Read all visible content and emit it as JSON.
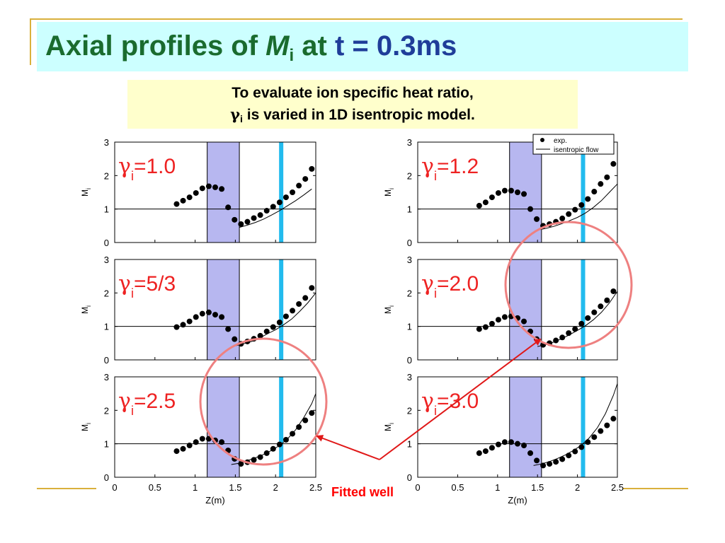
{
  "header": {
    "title_prefix": "Axial profiles of ",
    "title_var": "M",
    "title_sub": "i",
    "title_mid": " at ",
    "title_time": "t = 0.3ms"
  },
  "note": {
    "line1": "To evaluate ion specific heat ratio,",
    "gamma_symbol": "γ",
    "gamma_sub": "i",
    "line2_rest": " is varied in 1D isentropic model."
  },
  "annotation": {
    "label": "Fitted well"
  },
  "colors": {
    "title": "#1a6b2e",
    "title_time": "#1f3d99",
    "title_bg": "#ccffff",
    "note_bg": "#ffffcc",
    "shade": "#b7b7f0",
    "cyan_line": "#22bbee",
    "gamma_label": "#ee2222",
    "circle": "#ee8080",
    "arrow": "#e01818",
    "frame": "#d9b03c"
  },
  "chart_data": [
    {
      "type": "scatter",
      "gamma_label": "=1.0",
      "ylabel": "M",
      "ylabel_sub": "i",
      "xlim": [
        0,
        2.5
      ],
      "ylim": [
        0,
        3
      ],
      "yticks": [
        "0",
        "1",
        "2",
        "3"
      ],
      "shaded_region": [
        1.15,
        1.55
      ],
      "vline_x": 2.07,
      "hline_y": 1,
      "legend": null,
      "series": [
        {
          "kind": "points",
          "x": [
            0.77,
            0.85,
            0.93,
            1.01,
            1.09,
            1.17,
            1.25,
            1.33,
            1.41,
            1.49,
            1.57,
            1.65,
            1.73,
            1.81,
            1.89,
            1.97,
            2.05,
            2.13,
            2.21,
            2.29,
            2.37,
            2.45
          ],
          "y": [
            1.15,
            1.25,
            1.35,
            1.48,
            1.62,
            1.68,
            1.65,
            1.6,
            1.05,
            0.68,
            0.55,
            0.62,
            0.73,
            0.82,
            0.95,
            1.07,
            1.2,
            1.35,
            1.5,
            1.7,
            1.9,
            2.2
          ]
        },
        {
          "kind": "line",
          "x": [
            1.55,
            1.65,
            1.75,
            1.85,
            1.95,
            2.05,
            2.15,
            2.25,
            2.35,
            2.45
          ],
          "y": [
            0.45,
            0.52,
            0.6,
            0.7,
            0.82,
            0.95,
            1.1,
            1.25,
            1.42,
            1.6
          ]
        }
      ]
    },
    {
      "type": "scatter",
      "gamma_label": "=1.2",
      "ylabel": "M",
      "ylabel_sub": "i",
      "xlim": [
        0,
        2.5
      ],
      "ylim": [
        0,
        3
      ],
      "yticks": [
        "0",
        "1",
        "2",
        "3"
      ],
      "shaded_region": [
        1.15,
        1.55
      ],
      "vline_x": 2.07,
      "hline_y": 1,
      "legend": {
        "points": "exp.",
        "line": "isentropic flow"
      },
      "series": [
        {
          "kind": "points",
          "x": [
            0.77,
            0.85,
            0.93,
            1.01,
            1.09,
            1.17,
            1.25,
            1.33,
            1.41,
            1.49,
            1.57,
            1.65,
            1.73,
            1.81,
            1.89,
            1.97,
            2.05,
            2.13,
            2.21,
            2.29,
            2.37,
            2.45
          ],
          "y": [
            1.1,
            1.2,
            1.35,
            1.48,
            1.55,
            1.55,
            1.5,
            1.45,
            1.0,
            0.7,
            0.5,
            0.55,
            0.62,
            0.72,
            0.85,
            0.98,
            1.12,
            1.3,
            1.52,
            1.75,
            1.95,
            2.35
          ]
        },
        {
          "kind": "line",
          "x": [
            1.52,
            1.6,
            1.7,
            1.8,
            1.9,
            2.0,
            2.1,
            2.2,
            2.3,
            2.4,
            2.5
          ],
          "y": [
            0.38,
            0.42,
            0.48,
            0.56,
            0.65,
            0.75,
            0.88,
            1.05,
            1.25,
            1.5,
            1.75
          ]
        }
      ]
    },
    {
      "type": "scatter",
      "gamma_label": "=5/3",
      "ylabel": "M",
      "ylabel_sub": "i",
      "xlim": [
        0,
        2.5
      ],
      "ylim": [
        0,
        3
      ],
      "yticks": [
        "0",
        "1",
        "2",
        "3"
      ],
      "shaded_region": [
        1.15,
        1.55
      ],
      "vline_x": 2.07,
      "hline_y": 1,
      "legend": null,
      "series": [
        {
          "kind": "points",
          "x": [
            0.77,
            0.85,
            0.93,
            1.01,
            1.09,
            1.17,
            1.25,
            1.33,
            1.41,
            1.49,
            1.57,
            1.65,
            1.73,
            1.81,
            1.89,
            1.97,
            2.05,
            2.13,
            2.21,
            2.29,
            2.37,
            2.45
          ],
          "y": [
            0.98,
            1.05,
            1.15,
            1.28,
            1.38,
            1.42,
            1.35,
            1.28,
            0.92,
            0.62,
            0.48,
            0.55,
            0.63,
            0.72,
            0.85,
            0.98,
            1.12,
            1.3,
            1.47,
            1.67,
            1.85,
            2.15
          ]
        },
        {
          "kind": "line",
          "x": [
            1.5,
            1.6,
            1.7,
            1.8,
            1.9,
            2.0,
            2.1,
            2.2,
            2.3,
            2.4,
            2.5
          ],
          "y": [
            0.42,
            0.48,
            0.55,
            0.65,
            0.78,
            0.9,
            1.05,
            1.22,
            1.45,
            1.7,
            2.0
          ]
        }
      ]
    },
    {
      "type": "scatter",
      "gamma_label": "=2.0",
      "ylabel": "M",
      "ylabel_sub": "i",
      "xlim": [
        0,
        2.5
      ],
      "ylim": [
        0,
        3
      ],
      "yticks": [
        "0",
        "1",
        "2",
        "3"
      ],
      "shaded_region": [
        1.15,
        1.55
      ],
      "vline_x": 2.07,
      "hline_y": 1,
      "legend": null,
      "series": [
        {
          "kind": "points",
          "x": [
            0.77,
            0.85,
            0.93,
            1.01,
            1.09,
            1.17,
            1.25,
            1.33,
            1.41,
            1.49,
            1.57,
            1.65,
            1.73,
            1.81,
            1.89,
            1.97,
            2.05,
            2.13,
            2.21,
            2.29,
            2.37,
            2.45
          ],
          "y": [
            0.92,
            0.98,
            1.08,
            1.2,
            1.28,
            1.3,
            1.25,
            1.15,
            0.85,
            0.62,
            0.45,
            0.5,
            0.58,
            0.67,
            0.8,
            0.92,
            1.08,
            1.25,
            1.42,
            1.6,
            1.78,
            2.05
          ]
        },
        {
          "kind": "line",
          "x": [
            1.5,
            1.6,
            1.7,
            1.8,
            1.9,
            2.0,
            2.1,
            2.2,
            2.3,
            2.4,
            2.5
          ],
          "y": [
            0.4,
            0.45,
            0.53,
            0.63,
            0.75,
            0.88,
            1.02,
            1.2,
            1.42,
            1.7,
            2.05
          ]
        }
      ]
    },
    {
      "type": "scatter",
      "gamma_label": "=2.5",
      "ylabel": "M",
      "ylabel_sub": "i",
      "xlim": [
        0,
        2.5
      ],
      "ylim": [
        0,
        3
      ],
      "yticks": [
        "0",
        "1",
        "2",
        "3"
      ],
      "xticks": [
        "0",
        "0.5",
        "1",
        "1.5",
        "2",
        "2.5"
      ],
      "xlabel": "Z(m)",
      "shaded_region": [
        1.15,
        1.55
      ],
      "vline_x": 2.07,
      "hline_y": 1,
      "legend": null,
      "series": [
        {
          "kind": "points",
          "x": [
            0.77,
            0.85,
            0.93,
            1.01,
            1.09,
            1.17,
            1.25,
            1.33,
            1.41,
            1.49,
            1.57,
            1.65,
            1.73,
            1.81,
            1.89,
            1.97,
            2.05,
            2.13,
            2.21,
            2.29,
            2.37,
            2.45
          ],
          "y": [
            0.78,
            0.85,
            0.95,
            1.05,
            1.15,
            1.15,
            1.1,
            1.05,
            0.8,
            0.55,
            0.4,
            0.45,
            0.52,
            0.6,
            0.72,
            0.85,
            0.98,
            1.12,
            1.3,
            1.5,
            1.7,
            1.92
          ]
        },
        {
          "kind": "line",
          "x": [
            1.45,
            1.55,
            1.65,
            1.75,
            1.85,
            1.95,
            2.05,
            2.15,
            2.25,
            2.35,
            2.45,
            2.5
          ],
          "y": [
            0.38,
            0.42,
            0.5,
            0.58,
            0.68,
            0.8,
            0.95,
            1.15,
            1.42,
            1.78,
            2.2,
            2.5
          ]
        }
      ]
    },
    {
      "type": "scatter",
      "gamma_label": "=3.0",
      "ylabel": "M",
      "ylabel_sub": "i",
      "xlim": [
        0,
        2.5
      ],
      "ylim": [
        0,
        3
      ],
      "yticks": [
        "0",
        "1",
        "2",
        "3"
      ],
      "xticks": [
        "0",
        "0.5",
        "1",
        "1.5",
        "2",
        "2.5"
      ],
      "xlabel": "Z(m)",
      "shaded_region": [
        1.15,
        1.55
      ],
      "vline_x": 2.07,
      "hline_y": 1,
      "legend": null,
      "series": [
        {
          "kind": "points",
          "x": [
            0.77,
            0.85,
            0.93,
            1.01,
            1.09,
            1.17,
            1.25,
            1.33,
            1.41,
            1.49,
            1.57,
            1.65,
            1.73,
            1.81,
            1.89,
            1.97,
            2.05,
            2.13,
            2.21,
            2.29,
            2.37,
            2.45
          ],
          "y": [
            0.72,
            0.78,
            0.88,
            0.98,
            1.05,
            1.05,
            1.0,
            0.95,
            0.72,
            0.5,
            0.35,
            0.4,
            0.46,
            0.54,
            0.65,
            0.77,
            0.9,
            1.05,
            1.2,
            1.38,
            1.55,
            1.75
          ]
        },
        {
          "kind": "line",
          "x": [
            1.45,
            1.55,
            1.65,
            1.75,
            1.85,
            1.95,
            2.05,
            2.15,
            2.25,
            2.35,
            2.45,
            2.5
          ],
          "y": [
            0.35,
            0.4,
            0.47,
            0.56,
            0.67,
            0.8,
            0.96,
            1.18,
            1.48,
            1.9,
            2.45,
            2.8
          ]
        }
      ]
    }
  ]
}
